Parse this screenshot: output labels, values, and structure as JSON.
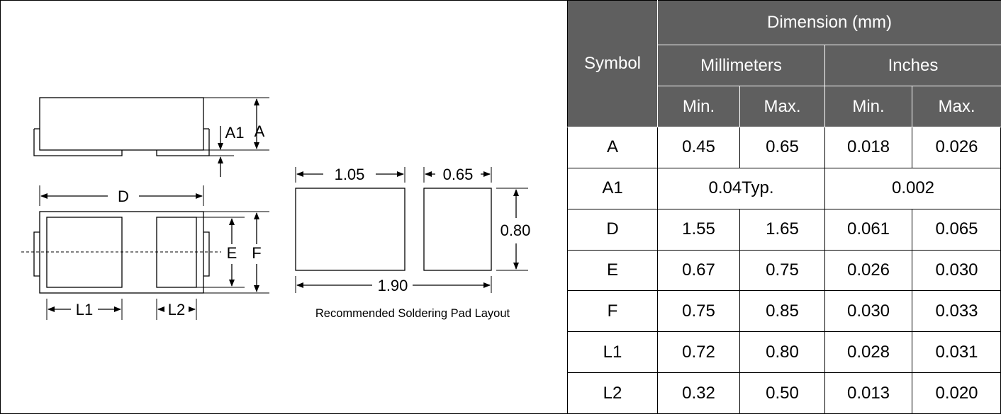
{
  "diagram": {
    "package_labels": {
      "a": "A",
      "a1": "A1",
      "d": "D",
      "e": "E",
      "f": "F",
      "l1": "L1",
      "l2": "L2"
    },
    "pad_layout": {
      "width_left": "1.05",
      "width_right": "0.65",
      "height": "0.80",
      "total_width": "1.90",
      "caption": "Recommended Soldering Pad Layout"
    }
  },
  "table": {
    "symbol_header": "Symbol",
    "dimension_header": "Dimension (mm)",
    "mm_header": "Millimeters",
    "in_header": "Inches",
    "min_label": "Min.",
    "max_label": "Max.",
    "rows": [
      {
        "symbol": "A",
        "mm_min": "0.45",
        "mm_max": "0.65",
        "in_min": "0.018",
        "in_max": "0.026"
      },
      {
        "symbol": "A1",
        "mm": "0.04Typ.",
        "in": "0.002"
      },
      {
        "symbol": "D",
        "mm_min": "1.55",
        "mm_max": "1.65",
        "in_min": "0.061",
        "in_max": "0.065"
      },
      {
        "symbol": "E",
        "mm_min": "0.67",
        "mm_max": "0.75",
        "in_min": "0.026",
        "in_max": "0.030"
      },
      {
        "symbol": "F",
        "mm_min": "0.75",
        "mm_max": "0.85",
        "in_min": "0.030",
        "in_max": "0.033"
      },
      {
        "symbol": "L1",
        "mm_min": "0.72",
        "mm_max": "0.80",
        "in_min": "0.028",
        "in_max": "0.031"
      },
      {
        "symbol": "L2",
        "mm_min": "0.32",
        "mm_max": "0.50",
        "in_min": "0.013",
        "in_max": "0.020"
      }
    ]
  }
}
